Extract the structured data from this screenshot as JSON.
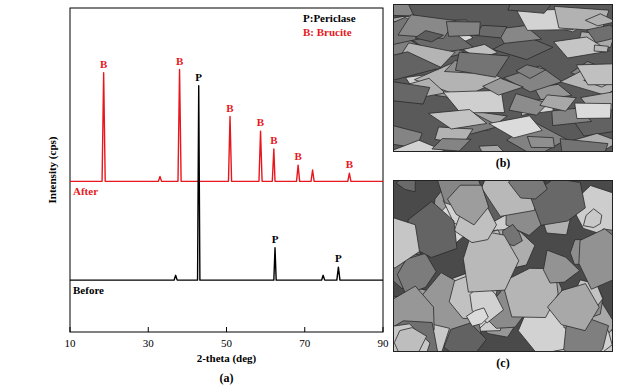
{
  "chart_data": {
    "type": "line",
    "panel_label": "(a)",
    "x_label": "2-theta (deg)",
    "y_label": "Intensity (cps)",
    "x": [
      10,
      18.2,
      18.6,
      19.0,
      32.6,
      33.0,
      33.4,
      36.6,
      37.0,
      37.4,
      37.6,
      38.0,
      38.4,
      42.6,
      42.9,
      43.2,
      50.5,
      50.9,
      51.3,
      58.3,
      58.7,
      59.1,
      61.7,
      62.1,
      62.4,
      62.7,
      67.9,
      68.3,
      68.7,
      71.6,
      72.0,
      72.4,
      74.3,
      74.7,
      75.1,
      78.2,
      78.6,
      79.0,
      81.0,
      81.4,
      81.8,
      90
    ],
    "series": [
      {
        "name": "After",
        "color": "#e8171d",
        "values": [
          46.5,
          46.5,
          80,
          46.5,
          46.5,
          48,
          46.5,
          46.5,
          46.5,
          46.5,
          46.5,
          81,
          46.5,
          46.5,
          46.5,
          46.5,
          46.5,
          66.5,
          46.5,
          46.5,
          62,
          46.5,
          46.5,
          56.5,
          46.5,
          46.5,
          46.5,
          51.5,
          46.5,
          46.5,
          50,
          46.5,
          46.5,
          46.5,
          46.5,
          46.5,
          46.5,
          46.5,
          46.5,
          49,
          46.5,
          46.5
        ]
      },
      {
        "name": "Before",
        "color": "#000000",
        "values": [
          16,
          16,
          16,
          16,
          16,
          16,
          16,
          16,
          17.5,
          16,
          16,
          16,
          16,
          16,
          76,
          16,
          16,
          16,
          16,
          16,
          16,
          16,
          16,
          16,
          26,
          16,
          16,
          16,
          16,
          16,
          16,
          16,
          16,
          17.5,
          16,
          16,
          20,
          16,
          16,
          16,
          16,
          16
        ]
      }
    ],
    "annotations": [
      {
        "text": "B",
        "x": 18.6,
        "y": 80,
        "color": "#e8171d"
      },
      {
        "text": "B",
        "x": 38.0,
        "y": 81,
        "color": "#e8171d"
      },
      {
        "text": "P",
        "x": 42.9,
        "y": 76,
        "color": "#000000"
      },
      {
        "text": "B",
        "x": 50.9,
        "y": 66.5,
        "color": "#e8171d"
      },
      {
        "text": "B",
        "x": 58.7,
        "y": 62,
        "color": "#e8171d"
      },
      {
        "text": "B",
        "x": 62.1,
        "y": 56.5,
        "color": "#e8171d"
      },
      {
        "text": "P",
        "x": 62.4,
        "y": 26,
        "color": "#000000"
      },
      {
        "text": "B",
        "x": 68.3,
        "y": 51.5,
        "color": "#e8171d"
      },
      {
        "text": "P",
        "x": 78.6,
        "y": 20,
        "color": "#000000"
      },
      {
        "text": "B",
        "x": 81.4,
        "y": 49,
        "color": "#e8171d"
      }
    ],
    "key": [
      {
        "text": "P:Periclase",
        "color": "#000000"
      },
      {
        "text": "B: Brucite",
        "color": "#e8171d"
      }
    ],
    "xlim": [
      10,
      90
    ],
    "xticks": [
      10,
      30,
      50,
      70,
      90
    ],
    "ylim": [
      0,
      100
    ],
    "tick_labels": "x",
    "grid": false
  },
  "images": [
    {
      "label": "(b)"
    },
    {
      "label": "(c)"
    }
  ]
}
